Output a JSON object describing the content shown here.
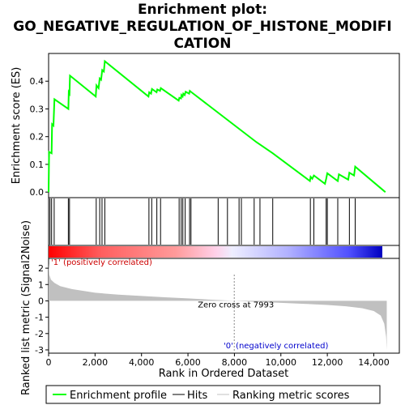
{
  "title_line1": "Enrichment plot:",
  "title_line2": "GO_NEGATIVE_REGULATION_OF_HISTONE_MODIFI",
  "title_line3": "CATION",
  "chart_data": [
    {
      "type": "line",
      "panel": "enrichment",
      "ylabel": "Enrichment score (ES)",
      "xlim": [
        0,
        15100
      ],
      "ylim": [
        -0.02,
        0.5
      ],
      "yticks": [
        0.0,
        0.1,
        0.2,
        0.3,
        0.4
      ],
      "ytick_labels": [
        "0.0",
        "0.1",
        "0.2",
        "0.3",
        "0.4"
      ],
      "grid": false,
      "series": [
        {
          "name": "Enrichment profile",
          "color": "#00ff00",
          "points": [
            [
              0,
              0.0
            ],
            [
              20,
              0.145
            ],
            [
              130,
              0.14
            ],
            [
              150,
              0.245
            ],
            [
              210,
              0.24
            ],
            [
              250,
              0.335
            ],
            [
              850,
              0.3
            ],
            [
              870,
              0.36
            ],
            [
              900,
              0.355
            ],
            [
              920,
              0.42
            ],
            [
              2030,
              0.345
            ],
            [
              2060,
              0.385
            ],
            [
              2150,
              0.375
            ],
            [
              2200,
              0.41
            ],
            [
              2260,
              0.405
            ],
            [
              2310,
              0.44
            ],
            [
              2380,
              0.435
            ],
            [
              2420,
              0.472
            ],
            [
              4300,
              0.345
            ],
            [
              4330,
              0.36
            ],
            [
              4410,
              0.355
            ],
            [
              4450,
              0.372
            ],
            [
              4650,
              0.36
            ],
            [
              4680,
              0.37
            ],
            [
              4800,
              0.365
            ],
            [
              4830,
              0.375
            ],
            [
              5600,
              0.33
            ],
            [
              5630,
              0.34
            ],
            [
              5700,
              0.338
            ],
            [
              5720,
              0.35
            ],
            [
              5770,
              0.345
            ],
            [
              5800,
              0.355
            ],
            [
              5860,
              0.35
            ],
            [
              5900,
              0.362
            ],
            [
              6050,
              0.355
            ],
            [
              6080,
              0.365
            ],
            [
              6150,
              0.36
            ],
            [
              8950,
              0.18
            ],
            [
              9650,
              0.14
            ],
            [
              11250,
              0.04
            ],
            [
              11280,
              0.055
            ],
            [
              11350,
              0.048
            ],
            [
              11420,
              0.06
            ],
            [
              11900,
              0.03
            ],
            [
              11950,
              0.048
            ],
            [
              12000,
              0.068
            ],
            [
              12450,
              0.04
            ],
            [
              12500,
              0.064
            ],
            [
              12900,
              0.045
            ],
            [
              12950,
              0.07
            ],
            [
              13150,
              0.06
            ],
            [
              13200,
              0.092
            ],
            [
              14500,
              0.0
            ]
          ]
        }
      ],
      "hits": [
        60,
        130,
        240,
        850,
        900,
        2050,
        2200,
        2300,
        2420,
        4320,
        4440,
        4660,
        4820,
        5620,
        5710,
        5780,
        5880,
        6070,
        6130,
        7300,
        7700,
        8200,
        8300,
        8850,
        9100,
        9650,
        11270,
        11420,
        11950,
        12000,
        12450,
        12950,
        13200
      ]
    },
    {
      "type": "area",
      "panel": "ranked-metric",
      "xlabel": "Rank in Ordered Dataset",
      "ylabel": "Ranked list metric (Signal2Noise)",
      "xlim": [
        0,
        15100
      ],
      "ylim": [
        -3.2,
        2.6
      ],
      "xticks": [
        0,
        2000,
        4000,
        6000,
        8000,
        10000,
        12000,
        14000
      ],
      "xtick_labels": [
        "0",
        "2,000",
        "4,000",
        "6,000",
        "8,000",
        "10,000",
        "12,000",
        "14,000"
      ],
      "yticks": [
        2,
        1,
        0,
        -1,
        -2,
        -3
      ],
      "ytick_labels": [
        "2",
        "1",
        "0",
        "-1",
        "-2",
        "-3"
      ],
      "grid": false,
      "color": "#c0c0c0",
      "points": [
        [
          0,
          2.3
        ],
        [
          30,
          1.6
        ],
        [
          100,
          1.3
        ],
        [
          250,
          1.1
        ],
        [
          500,
          0.9
        ],
        [
          1000,
          0.72
        ],
        [
          2000,
          0.5
        ],
        [
          3000,
          0.38
        ],
        [
          4000,
          0.3
        ],
        [
          5000,
          0.22
        ],
        [
          6000,
          0.15
        ],
        [
          7000,
          0.07
        ],
        [
          7993,
          0.0
        ],
        [
          9000,
          -0.06
        ],
        [
          10000,
          -0.12
        ],
        [
          11000,
          -0.18
        ],
        [
          12000,
          -0.25
        ],
        [
          12800,
          -0.33
        ],
        [
          13500,
          -0.45
        ],
        [
          14000,
          -0.62
        ],
        [
          14300,
          -0.9
        ],
        [
          14450,
          -1.4
        ],
        [
          14530,
          -2.2
        ],
        [
          14560,
          -3.0
        ]
      ],
      "annotations": {
        "zero_cross": "Zero cross at 7993",
        "zero_cross_rank": 7993,
        "positive_label": "'1' (positively correlated)",
        "negative_label": "'0' (negatively correlated)"
      }
    }
  ],
  "legend": {
    "position": "bottom",
    "items": [
      {
        "label": "Enrichment profile",
        "color": "#00ff00",
        "kind": "line"
      },
      {
        "label": "Hits",
        "color": "#000000",
        "kind": "line"
      },
      {
        "label": "Ranking metric scores",
        "color": "#c0c0c0",
        "kind": "line"
      }
    ]
  },
  "colors": {
    "positive": "#ff0000",
    "negative": "#0000ff",
    "profile": "#00ff00",
    "metric_fill": "#c0c0c0",
    "zero_cross_line": "#888888"
  }
}
